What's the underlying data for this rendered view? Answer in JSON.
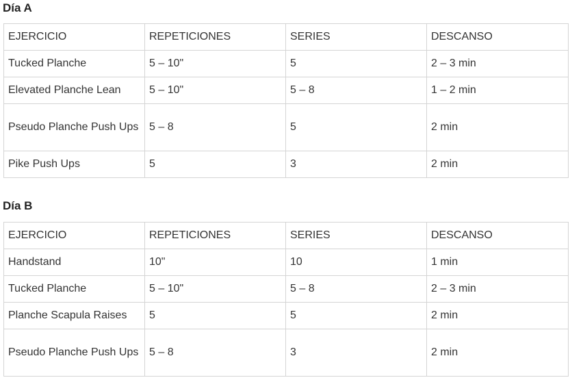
{
  "sections": [
    {
      "title": "Día A",
      "headers": [
        "EJERCICIO",
        "REPETICIONES",
        "SERIES",
        "DESCANSO"
      ],
      "rows": [
        [
          "Tucked Planche",
          "5 – 10\"",
          "5",
          "2 – 3 min"
        ],
        [
          "Elevated Planche Lean",
          "5 – 10\"",
          "5 – 8",
          "1 – 2 min"
        ],
        [
          "Pseudo Planche Push Ups",
          "5 – 8",
          "5",
          "2 min"
        ],
        [
          "Pike Push Ups",
          "5",
          "3",
          "2 min"
        ]
      ]
    },
    {
      "title": "Día B",
      "headers": [
        "EJERCICIO",
        "REPETICIONES",
        "SERIES",
        "DESCANSO"
      ],
      "rows": [
        [
          "Handstand",
          "10\"",
          "10",
          "1 min"
        ],
        [
          "Tucked Planche",
          "5 – 10\"",
          "5 – 8",
          "2 – 3 min"
        ],
        [
          "Planche Scapula Raises",
          "5",
          "5",
          "2 min"
        ],
        [
          "Pseudo Planche Push Ups",
          "5 – 8",
          "3",
          "2 min"
        ]
      ]
    }
  ]
}
